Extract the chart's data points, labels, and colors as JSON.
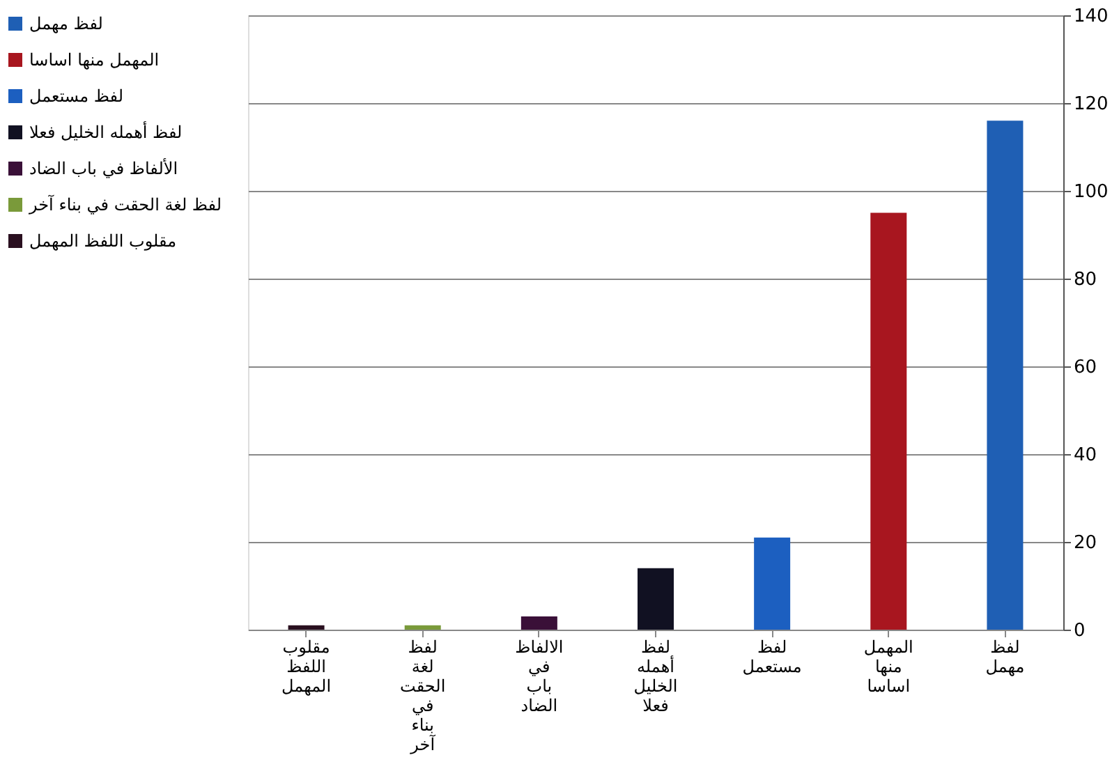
{
  "chart_data": {
    "type": "bar",
    "categories": [
      "مقلوب اللفظ المهمل",
      "لفظ لغة الحقت في بناء آخر",
      "الالفاظ في باب الضاد",
      "لفظ أهمله الخليل فعلا",
      "لفظ مستعمل",
      "المهمل منها اساسا",
      "لفظ مهمل"
    ],
    "series": [
      {
        "name": "لفظ مهمل",
        "color": "#1f5fb4",
        "values": [
          null,
          null,
          null,
          null,
          null,
          null,
          116
        ]
      },
      {
        "name": "المهمل منها اساسا",
        "color": "#a8161f",
        "values": [
          null,
          null,
          null,
          null,
          null,
          95,
          null
        ]
      },
      {
        "name": "لفظ مستعمل",
        "color": "#1c5fc0",
        "values": [
          null,
          null,
          null,
          null,
          21,
          null,
          null
        ]
      },
      {
        "name": "لفظ أهمله الخليل فعلا",
        "color": "#111122",
        "values": [
          null,
          null,
          null,
          14,
          null,
          null,
          null
        ]
      },
      {
        "name": "الألفاظ في باب الضاد",
        "color": "#3a1038",
        "values": [
          null,
          null,
          3,
          null,
          null,
          null,
          null
        ]
      },
      {
        "name": "لفظ لغة الحقت في بناء آخر",
        "color": "#7a9a3a",
        "values": [
          null,
          1,
          null,
          null,
          null,
          null,
          null
        ]
      },
      {
        "name": "مقلوب اللفظ المهمل",
        "color": "#2a1020",
        "values": [
          1,
          null,
          null,
          null,
          null,
          null,
          null
        ]
      }
    ],
    "ylim": [
      0,
      140
    ],
    "yticks": [
      0,
      20,
      40,
      60,
      80,
      100,
      120,
      140
    ],
    "grid": "y",
    "legend": "left"
  }
}
